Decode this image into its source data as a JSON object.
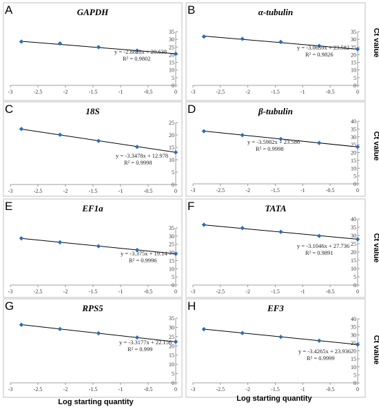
{
  "figure": {
    "y_axis_label": "Ct value",
    "x_axis_label": "Log starting quantity",
    "colors": {
      "point": "#2e6bb5",
      "line": "#000000",
      "frame": "#bfbfbf",
      "axis": "#7f7f7f"
    }
  },
  "chart_data": [
    {
      "type": "scatter",
      "letter": "A",
      "title": "GAPDH",
      "x": [
        -2.8,
        -2.1,
        -1.4,
        -0.7,
        0
      ],
      "y": [
        28.5,
        27.3,
        24.9,
        22.6,
        20.6
      ],
      "fit": {
        "slope": -2.8828,
        "intercept": 20.638
      },
      "equation": "y = -2.8828x + 20.638",
      "r2": "R² = 0.9802",
      "xlim": [
        -3,
        0
      ],
      "ylim": [
        0,
        35
      ],
      "xticks": [
        -3,
        -2.5,
        -2,
        -1.5,
        -1,
        -0.5,
        0
      ],
      "yticks": [
        0,
        5,
        10,
        15,
        20,
        25,
        30,
        35
      ]
    },
    {
      "type": "scatter",
      "letter": "B",
      "title": "α-tubulin",
      "x": [
        -2.8,
        -2.1,
        -1.4,
        -0.7,
        0
      ],
      "y": [
        31.8,
        30.3,
        28.3,
        25.7,
        23.6
      ],
      "fit": {
        "slope": -3.0659,
        "intercept": 23.582
      },
      "equation": "y = -3.0659x + 23.582",
      "r2": "R² = 0.9826",
      "xlim": [
        -3,
        0
      ],
      "ylim": [
        0,
        35
      ],
      "xticks": [
        -3,
        -2.5,
        -2,
        -1.5,
        -1,
        -0.5,
        0
      ],
      "yticks": [
        0,
        5,
        10,
        15,
        20,
        25,
        30,
        35
      ]
    },
    {
      "type": "scatter",
      "letter": "C",
      "title": "18S",
      "x": [
        -2.8,
        -2.1,
        -1.4,
        -0.7,
        0
      ],
      "y": [
        22.4,
        20.1,
        17.6,
        15.2,
        13.0
      ],
      "fit": {
        "slope": -3.3478,
        "intercept": 12.978
      },
      "equation": "y = -3.3478x + 12.978",
      "r2": "R² = 0.9998",
      "xlim": [
        -3,
        0
      ],
      "ylim": [
        0,
        25
      ],
      "xticks": [
        -3,
        -2.5,
        -2,
        -1.5,
        -1,
        -0.5,
        0
      ],
      "yticks": [
        0,
        5,
        10,
        15,
        20,
        25
      ]
    },
    {
      "type": "scatter",
      "letter": "D",
      "title": "β-tubulin",
      "x": [
        -2.8,
        -2.1,
        -1.4,
        -0.7,
        0
      ],
      "y": [
        33.6,
        31.1,
        28.6,
        26.1,
        23.6
      ],
      "fit": {
        "slope": -3.5982,
        "intercept": 23.586
      },
      "equation": "y = -3.5982x + 23.586",
      "r2": "R² = 0.9998",
      "xlim": [
        -3,
        0
      ],
      "ylim": [
        0,
        40
      ],
      "xticks": [
        -3,
        -2.5,
        -2,
        -1.5,
        -1,
        -0.5,
        0
      ],
      "yticks": [
        0,
        5,
        10,
        15,
        20,
        25,
        30,
        35,
        40
      ]
    },
    {
      "type": "scatter",
      "letter": "E",
      "title": "EF1a",
      "x": [
        -2.8,
        -2.1,
        -1.4,
        -0.7,
        0
      ],
      "y": [
        28.6,
        26.2,
        23.8,
        21.5,
        19.1
      ],
      "fit": {
        "slope": -3.375,
        "intercept": 19.14
      },
      "equation": "y = -3.375x + 19.14",
      "r2": "R² = 0.9996",
      "xlim": [
        -3,
        0
      ],
      "ylim": [
        0,
        35
      ],
      "xticks": [
        -3,
        -2.5,
        -2,
        -1.5,
        -1,
        -0.5,
        0
      ],
      "yticks": [
        0,
        5,
        10,
        15,
        20,
        25,
        30,
        35
      ]
    },
    {
      "type": "scatter",
      "letter": "F",
      "title": "TATA",
      "x": [
        -2.8,
        -2.1,
        -1.4,
        -0.7,
        0
      ],
      "y": [
        36.5,
        34.5,
        32.2,
        29.7,
        27.7
      ],
      "fit": {
        "slope": -3.1046,
        "intercept": 27.736
      },
      "equation": "y = -3.1046x + 27.736",
      "r2": "R² = 0.9891",
      "xlim": [
        -3,
        0
      ],
      "ylim": [
        0,
        40
      ],
      "xticks": [
        -3,
        -2.5,
        -2,
        -1.5,
        -1,
        -0.5,
        0
      ],
      "yticks": [
        0,
        5,
        10,
        15,
        20,
        25,
        30,
        35,
        40
      ]
    },
    {
      "type": "scatter",
      "letter": "G",
      "title": "RPS5",
      "x": [
        -2.8,
        -2.1,
        -1.4,
        -0.7,
        0
      ],
      "y": [
        31.4,
        29.1,
        26.8,
        24.5,
        22.2
      ],
      "fit": {
        "slope": -3.3177,
        "intercept": 22.156
      },
      "equation": "y = -3.3177x + 22.156",
      "r2": "R² = 0.999",
      "xlim": [
        -3,
        0
      ],
      "ylim": [
        0,
        35
      ],
      "xticks": [
        -3,
        -2.5,
        -2,
        -1.5,
        -1,
        -0.5,
        0
      ],
      "yticks": [
        0,
        5,
        10,
        15,
        20,
        25,
        30,
        35
      ]
    },
    {
      "type": "scatter",
      "letter": "H",
      "title": "EF3",
      "x": [
        -2.8,
        -2.1,
        -1.4,
        -0.7,
        0
      ],
      "y": [
        33.5,
        31.1,
        28.7,
        26.3,
        23.9
      ],
      "fit": {
        "slope": -3.4265,
        "intercept": 23.936
      },
      "equation": "y = -3.4265x + 23.936",
      "r2": "R² = 0.9999",
      "xlim": [
        -3,
        0
      ],
      "ylim": [
        0,
        40
      ],
      "xticks": [
        -3,
        -2.5,
        -2,
        -1.5,
        -1,
        -0.5,
        0
      ],
      "yticks": [
        0,
        5,
        10,
        15,
        20,
        25,
        30,
        35,
        40
      ]
    }
  ]
}
